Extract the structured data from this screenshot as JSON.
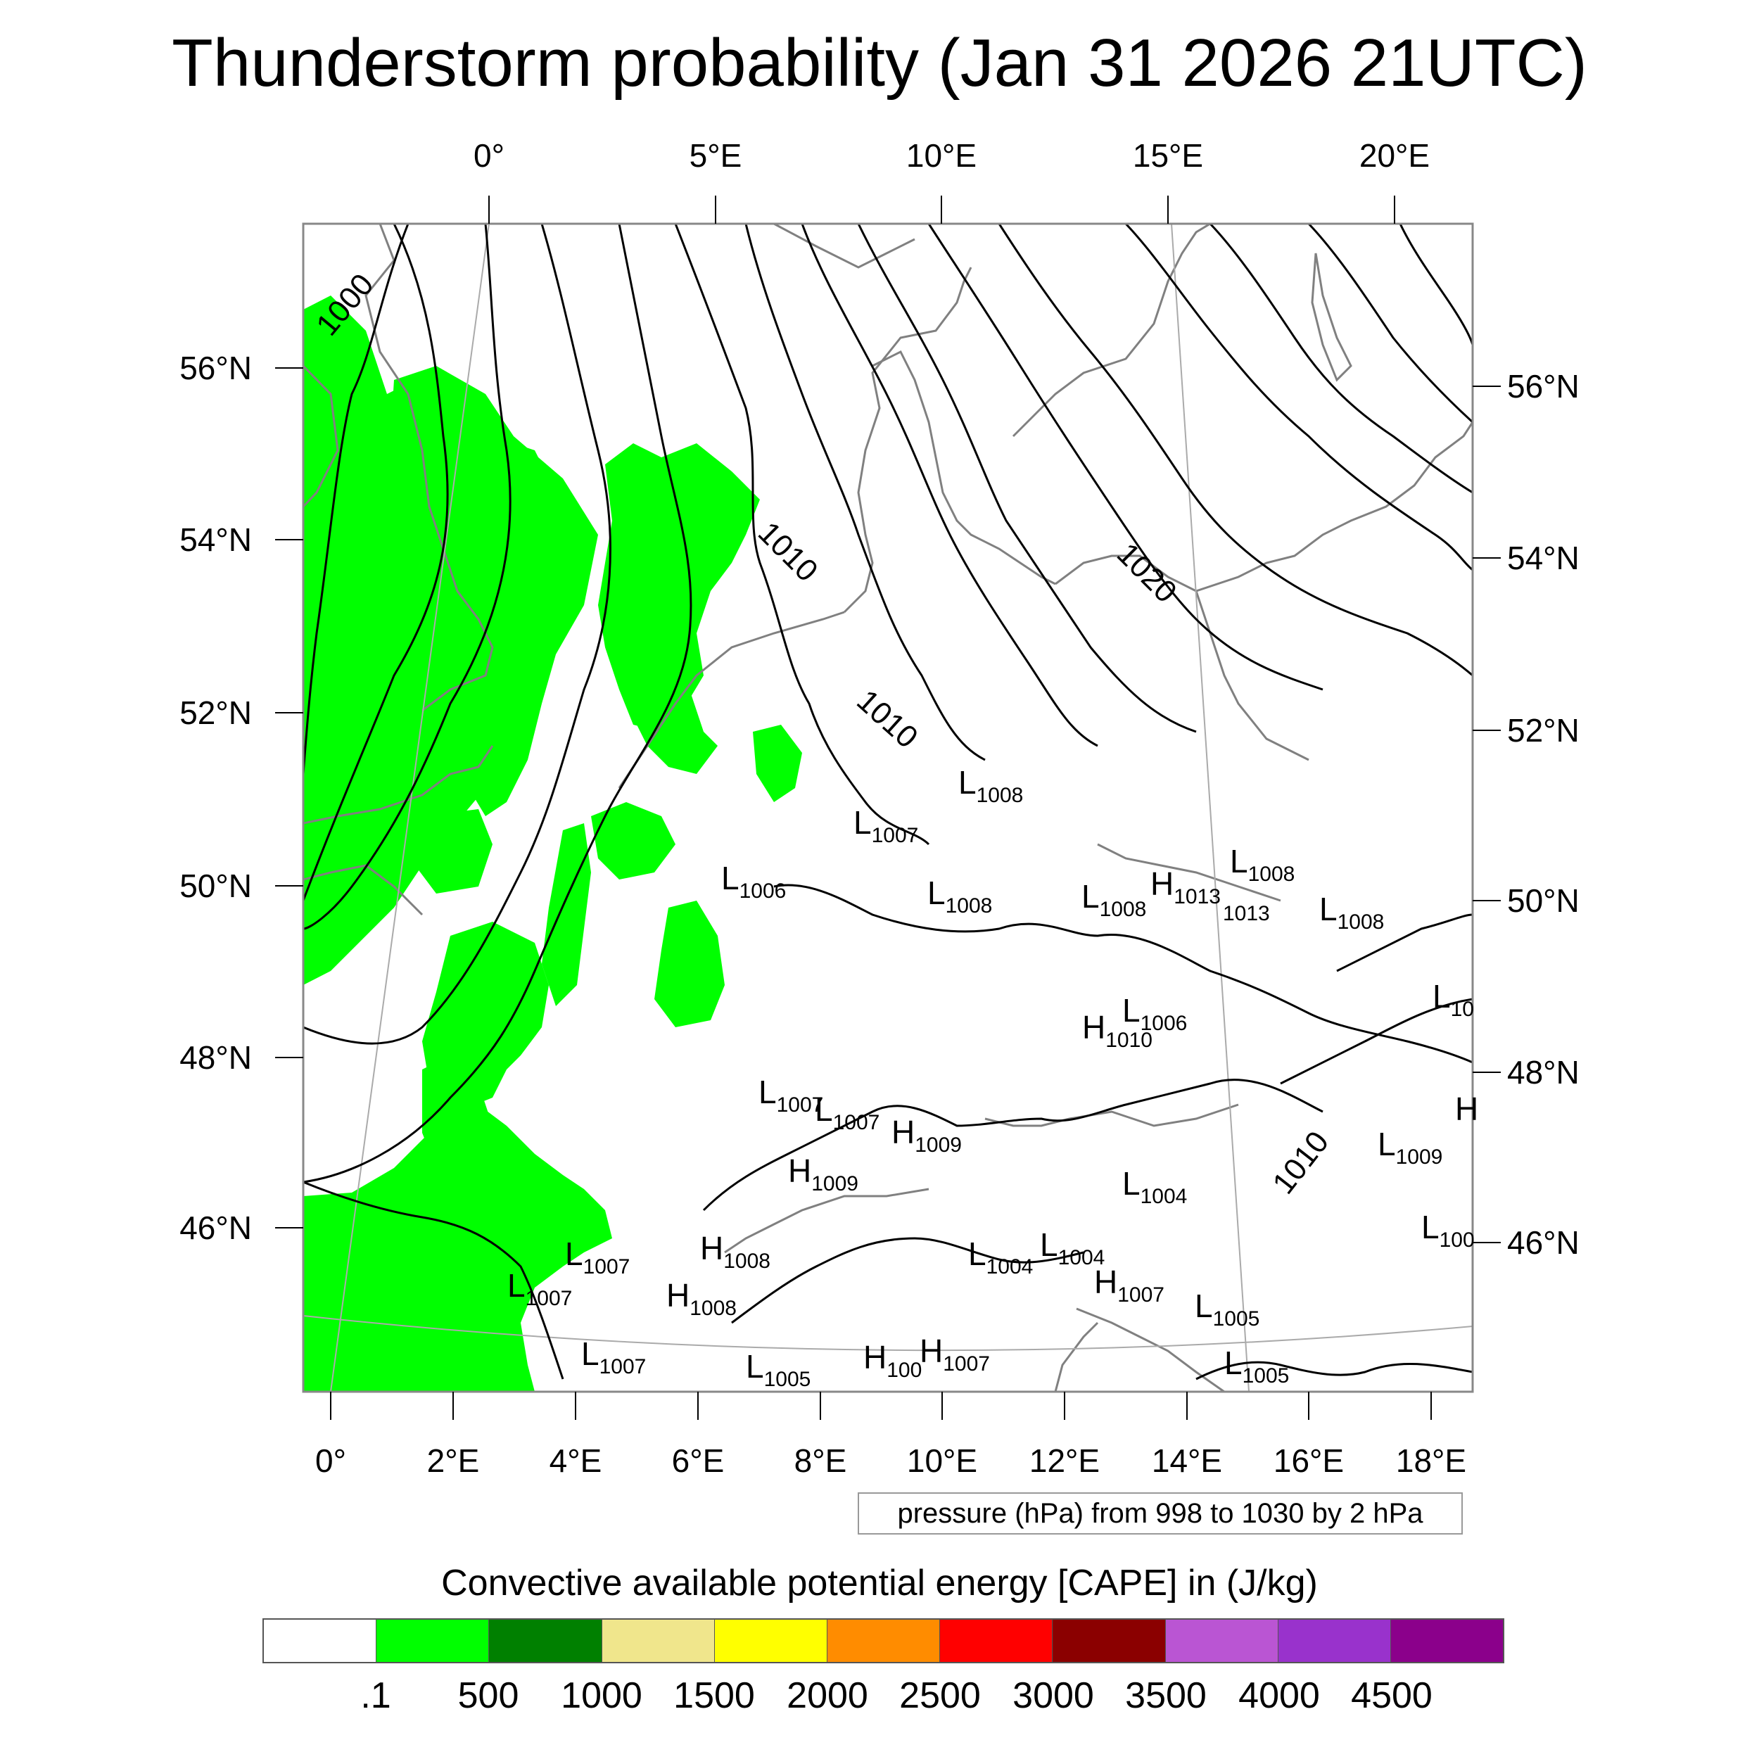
{
  "title": "Thunderstorm probability (Jan 31 2026 21UTC)",
  "top_lon_labels": [
    "0°",
    "5°E",
    "10°E",
    "15°E",
    "20°E"
  ],
  "bottom_lon_labels": [
    "0°",
    "2°E",
    "4°E",
    "6°E",
    "8°E",
    "10°E",
    "12°E",
    "14°E",
    "16°E",
    "18°E"
  ],
  "left_lat_labels": [
    "56°N",
    "54°N",
    "52°N",
    "50°N",
    "48°N",
    "46°N"
  ],
  "right_lat_labels": [
    "56°N",
    "54°N",
    "52°N",
    "50°N",
    "48°N",
    "46°N"
  ],
  "contour_labels": [
    "1000",
    "1010",
    "1010",
    "1020",
    "1010"
  ],
  "pressure_centers": [
    {
      "letter": "L",
      "value": "1008"
    },
    {
      "letter": "L",
      "value": "1007"
    },
    {
      "letter": "L",
      "value": "1006"
    },
    {
      "letter": "L",
      "value": "1008"
    },
    {
      "letter": "L",
      "value": "1008"
    },
    {
      "letter": "H",
      "value": "1013"
    },
    {
      "letter": "",
      "value": "1013"
    },
    {
      "letter": "L",
      "value": "1008"
    },
    {
      "letter": "L",
      "value": "1008"
    },
    {
      "letter": "L",
      "value": "10"
    },
    {
      "letter": "L",
      "value": "1006"
    },
    {
      "letter": "H",
      "value": "1010"
    },
    {
      "letter": "L",
      "value": "1007"
    },
    {
      "letter": "L",
      "value": "1007"
    },
    {
      "letter": "H",
      "value": "1009"
    },
    {
      "letter": "H",
      "value": "1009"
    },
    {
      "letter": "L",
      "value": "1004"
    },
    {
      "letter": "L",
      "value": "1009"
    },
    {
      "letter": "H",
      "value": ""
    },
    {
      "letter": "L",
      "value": "100"
    },
    {
      "letter": "H",
      "value": "1008"
    },
    {
      "letter": "L",
      "value": "1007"
    },
    {
      "letter": "L",
      "value": "1007"
    },
    {
      "letter": "H",
      "value": "1008"
    },
    {
      "letter": "L",
      "value": "1004"
    },
    {
      "letter": "L",
      "value": "1004"
    },
    {
      "letter": "H",
      "value": "1007"
    },
    {
      "letter": "L",
      "value": "1005"
    },
    {
      "letter": "L",
      "value": "1007"
    },
    {
      "letter": "L",
      "value": "1005"
    },
    {
      "letter": "H",
      "value": "100"
    },
    {
      "letter": "H",
      "value": "1007"
    },
    {
      "letter": "L",
      "value": "1005"
    }
  ],
  "info_box": "pressure (hPa) from 998 to 1030 by 2 hPa",
  "colorbar_title": "Convective available potential energy [CAPE] in (J/kg)",
  "colorbar_colors": [
    "#ffffff",
    "#00ff00",
    "#008000",
    "#f0e68c",
    "#ffff00",
    "#ff8c00",
    "#ff0000",
    "#8b0000",
    "#ba55d3",
    "#9932cc",
    "#8b008b"
  ],
  "colorbar_labels": [
    ".1",
    "500",
    "1000",
    "1500",
    "2000",
    "2500",
    "3000",
    "3500",
    "4000",
    "4500"
  ],
  "colors": {
    "cape_fill": "#00ff00",
    "coastline": "#808080",
    "isobar": "#000000",
    "grid": "#aaaaaa"
  }
}
